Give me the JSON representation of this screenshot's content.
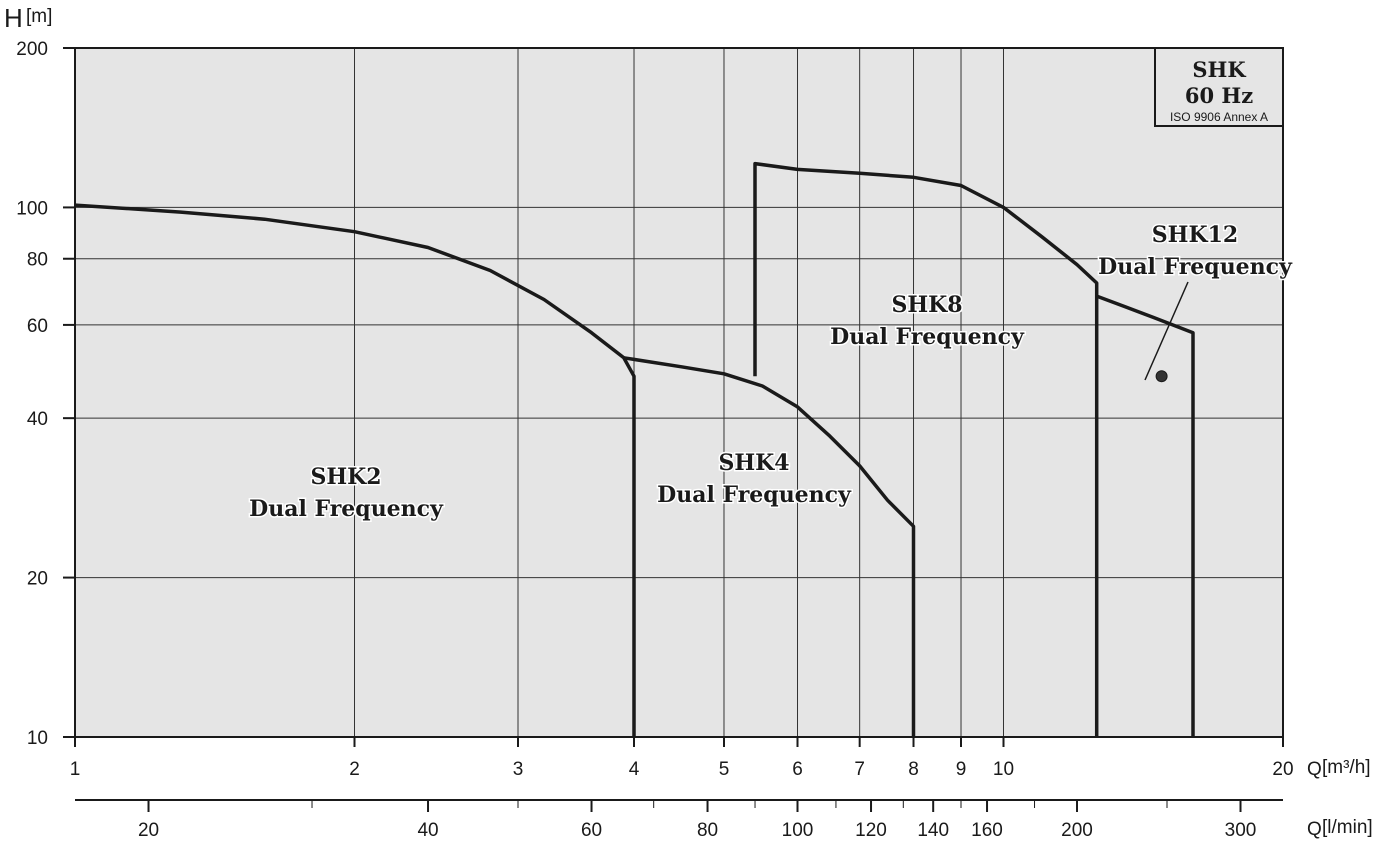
{
  "chart_data": {
    "type": "line",
    "y_axis": {
      "label": "H",
      "unit": "[m]",
      "scale": "log",
      "range": [
        10,
        200
      ],
      "ticks": [
        10,
        20,
        40,
        60,
        80,
        100,
        200
      ]
    },
    "x_axis": {
      "unit": "Q",
      "unit_suffix": "[m³/h]",
      "scale": "log",
      "range": [
        1,
        20
      ],
      "ticks": [
        1,
        2,
        3,
        4,
        5,
        6,
        7,
        8,
        9,
        10,
        20
      ]
    },
    "x_axis_secondary": {
      "unit": "Q",
      "unit_suffix": "[l/min]",
      "scale": "log",
      "ticks": [
        20,
        40,
        60,
        80,
        100,
        120,
        140,
        160,
        200,
        300
      ]
    },
    "grid": true,
    "legend_box": {
      "title": "SHK",
      "frequency": "60 Hz",
      "standard": "ISO 9906 Annex A"
    },
    "series": [
      {
        "name": "SHK2",
        "label_line2": "Dual Frequency",
        "x": [
          1.0,
          1.3,
          1.6,
          2.0,
          2.4,
          2.8,
          3.2,
          3.6,
          3.9,
          4.0,
          4.0
        ],
        "y": [
          101,
          98,
          95,
          90,
          84,
          76,
          67,
          58,
          52,
          48,
          10
        ]
      },
      {
        "name": "SHK4",
        "label_line2": "Dual Frequency",
        "x": [
          3.9,
          4.5,
          5.0,
          5.5,
          6.0,
          6.5,
          7.0,
          7.5,
          8.0,
          8.0
        ],
        "y": [
          52,
          50,
          48.5,
          46,
          42,
          37,
          32.5,
          28,
          25,
          10
        ]
      },
      {
        "name": "SHK8",
        "label_line2": "Dual Frequency",
        "x": [
          5.4,
          5.4,
          6.0,
          7.0,
          8.0,
          9.0,
          10.0,
          11.0,
          12.0,
          12.6,
          12.6
        ],
        "y": [
          48,
          121,
          118,
          116,
          114,
          110,
          100,
          88,
          78,
          72,
          10
        ]
      },
      {
        "name": "SHK12",
        "label_line2": "Dual Frequency",
        "x": [
          12.6,
          13.5,
          14.5,
          16.0,
          16.0
        ],
        "y": [
          68,
          65,
          62,
          58,
          10
        ]
      }
    ],
    "annotation_point": {
      "series": "SHK12",
      "x": 14.8,
      "y": 48
    }
  }
}
